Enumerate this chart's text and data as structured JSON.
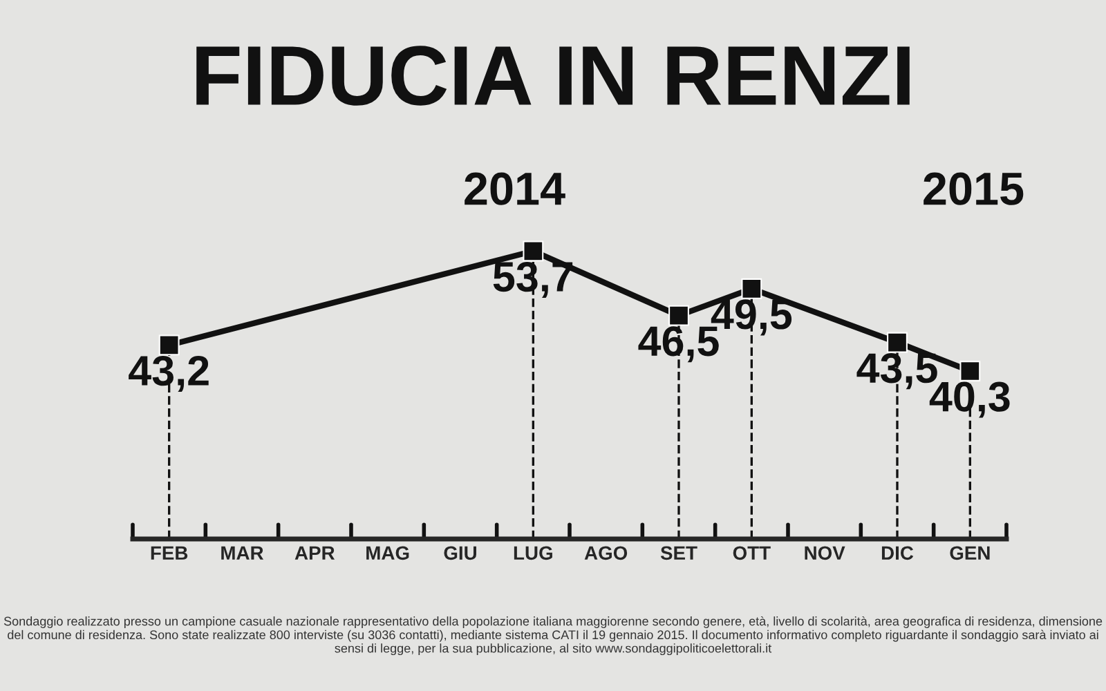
{
  "chart_data": {
    "type": "line",
    "title": "FIDUCIA IN RENZI",
    "categories": [
      "FEB",
      "MAR",
      "APR",
      "MAG",
      "GIU",
      "LUG",
      "AGO",
      "SET",
      "OTT",
      "NOV",
      "DIC",
      "GEN"
    ],
    "series": [
      {
        "color": "#111111",
        "values": [
          43.2,
          null,
          null,
          null,
          null,
          53.7,
          null,
          46.5,
          49.5,
          null,
          43.5,
          40.3
        ],
        "value_labels": [
          "43,2",
          null,
          null,
          null,
          null,
          "53,7",
          null,
          "46,5",
          "49,5",
          null,
          "43,5",
          "40,3"
        ]
      }
    ],
    "marker": "square",
    "line_style": "solid",
    "grid": "x",
    "legend": false,
    "tick_labels": "x",
    "annotations": [
      "2014",
      "2015",
      "Sondaggio realizzato presso un campione casuale nazionale rappresentativo della popolazione italiana maggiorenne secondo genere, età, livello di scolarità, area geografica di residenza, dimensione del comune di residenza. Sono state realizzate 800 interviste (su 3036 contatti), mediante sistema CATI il 19 gennaio 2015. Il documento informativo completo riguardante il sondaggio sarà inviato ai sensi di legge, per la sua pubblicazione, al sito www.sondaggipoliticoelettorali.it"
    ]
  }
}
